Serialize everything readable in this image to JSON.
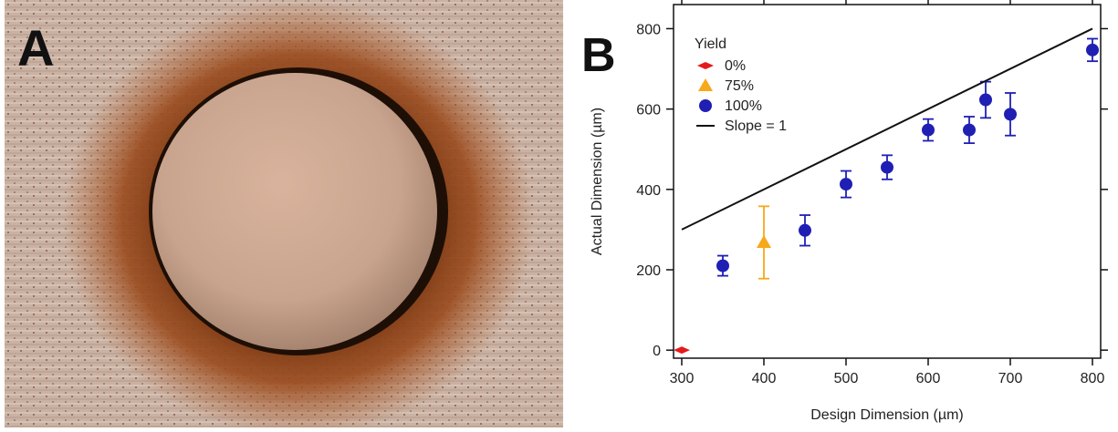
{
  "panel_a": {
    "letter": "A"
  },
  "panel_b": {
    "letter": "B"
  },
  "chart_data": {
    "type": "scatter",
    "title": "",
    "xlabel": "Design Dimension (µm)",
    "ylabel": "Actual Dimension (µm)",
    "xlim": [
      290,
      810
    ],
    "ylim": [
      -20,
      860
    ],
    "xticks": [
      300,
      400,
      500,
      600,
      700,
      800
    ],
    "yticks": [
      0,
      200,
      400,
      600,
      800
    ],
    "grid": false,
    "legend": {
      "title": "Yield",
      "placement": "top-left"
    },
    "series": [
      {
        "name": "0%",
        "marker": "diamond",
        "color": "#e41a1c",
        "points": [
          {
            "x": 300,
            "y": 0,
            "err": 0
          }
        ]
      },
      {
        "name": "75%",
        "marker": "triangle",
        "color": "#f7a81b",
        "points": [
          {
            "x": 400,
            "y": 268,
            "err": 90
          }
        ]
      },
      {
        "name": "100%",
        "marker": "circle",
        "color": "#1f1fb4",
        "points": [
          {
            "x": 350,
            "y": 210,
            "err": 25
          },
          {
            "x": 450,
            "y": 298,
            "err": 38
          },
          {
            "x": 500,
            "y": 413,
            "err": 33
          },
          {
            "x": 550,
            "y": 455,
            "err": 30
          },
          {
            "x": 600,
            "y": 548,
            "err": 27
          },
          {
            "x": 650,
            "y": 548,
            "err": 33
          },
          {
            "x": 670,
            "y": 623,
            "err": 45
          },
          {
            "x": 700,
            "y": 587,
            "err": 53
          },
          {
            "x": 800,
            "y": 747,
            "err": 28
          }
        ]
      },
      {
        "name": "Slope = 1",
        "marker": "line",
        "color": "#111111",
        "points": [
          {
            "x": 300,
            "y": 300
          },
          {
            "x": 800,
            "y": 800
          }
        ]
      }
    ]
  }
}
